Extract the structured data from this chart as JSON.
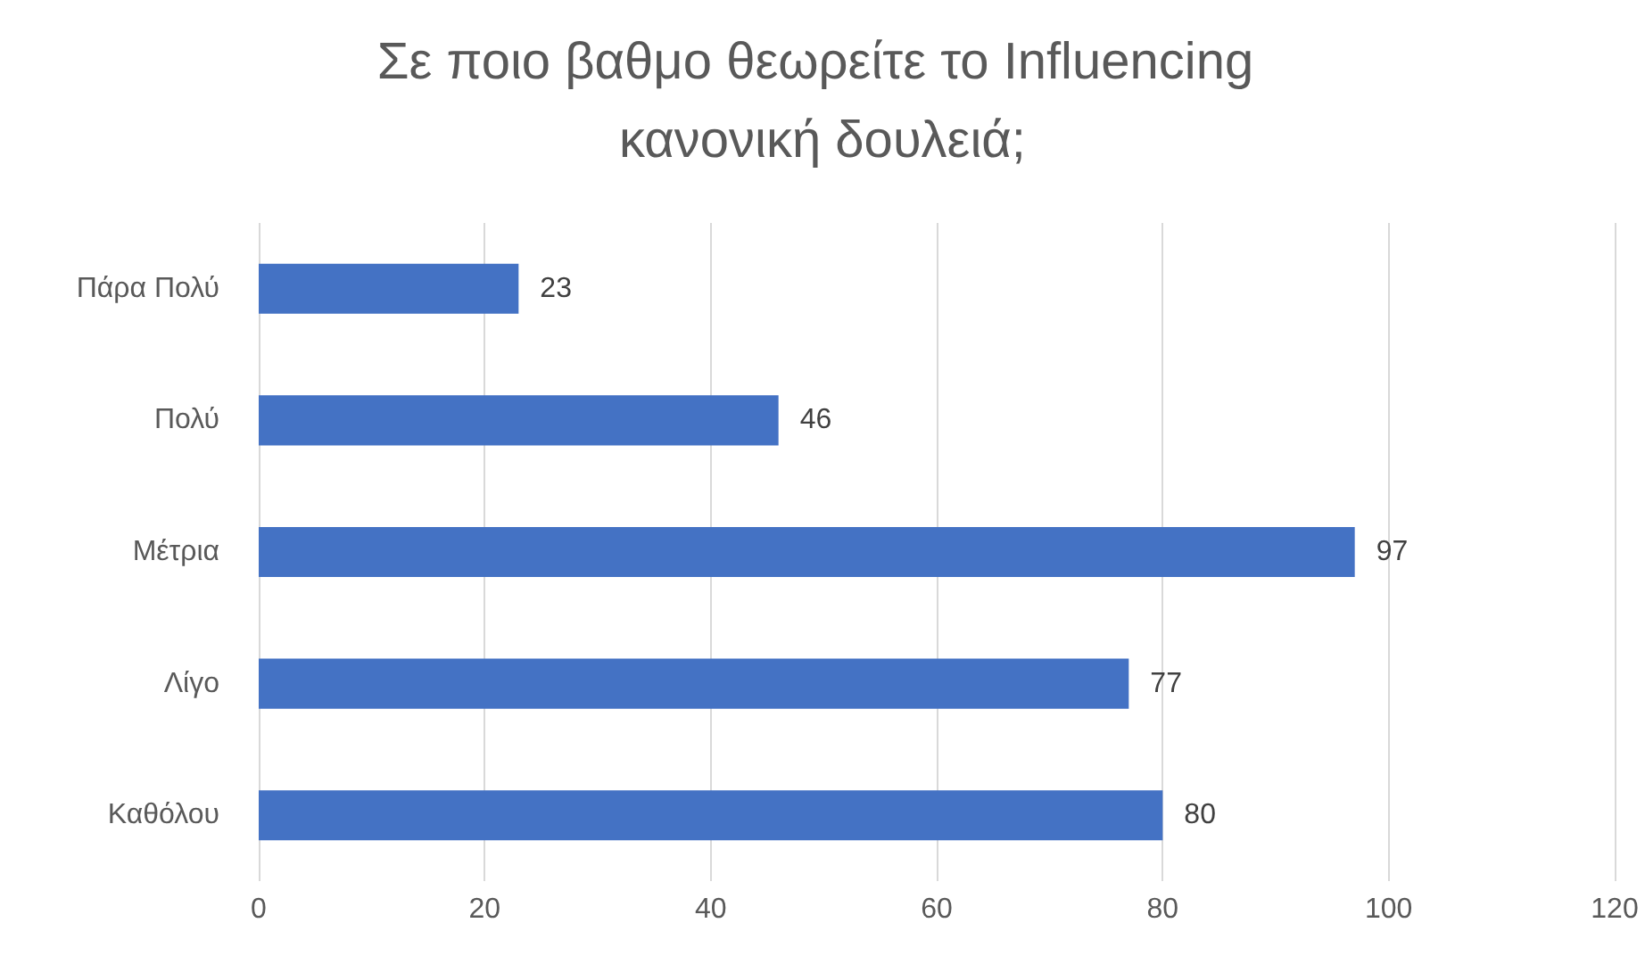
{
  "chart_data": {
    "type": "bar",
    "orientation": "horizontal",
    "title": "Σε ποιο βαθμο θεωρείτε το Influencing κανονική δουλειά;",
    "categories": [
      "Πάρα Πολύ",
      "Πολύ",
      "Μέτρια",
      "Λίγο",
      "Καθόλου"
    ],
    "values": [
      23,
      46,
      97,
      77,
      80
    ],
    "color": "#4472c4",
    "xlim": [
      0,
      120
    ],
    "xticks": [
      0,
      20,
      40,
      60,
      80,
      100,
      120
    ],
    "grid": "x",
    "data_labels": true
  }
}
